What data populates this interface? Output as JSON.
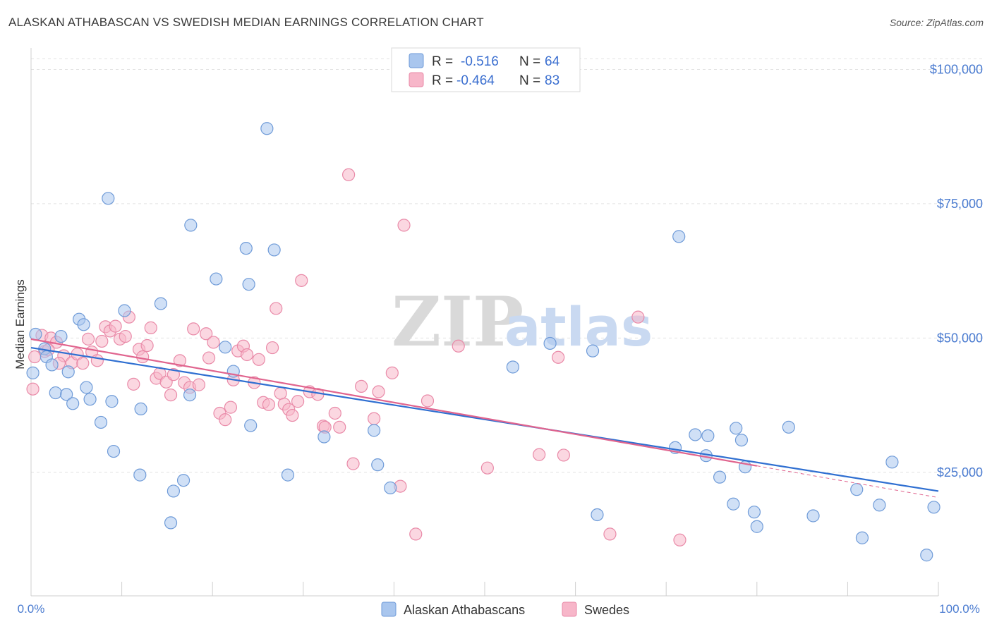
{
  "title": "ALASKAN ATHABASCAN VS SWEDISH MEDIAN EARNINGS CORRELATION CHART",
  "source": "Source: ZipAtlas.com",
  "watermark": {
    "zip": "ZIP",
    "atlas": "atlas"
  },
  "legend": {
    "series": [
      {
        "r_label": "R =",
        "r_value": "-0.516",
        "n_label": "N =",
        "n_value": "64"
      },
      {
        "r_label": "R =",
        "r_value": "-0.464",
        "n_label": "N =",
        "n_value": "83"
      }
    ]
  },
  "colors": {
    "blue_fill": "#a9c6ee",
    "blue_stroke": "#6f9bd8",
    "blue_line": "#2f6fd1",
    "pink_fill": "#f7b6c9",
    "pink_stroke": "#e98aa8",
    "pink_line": "#e0648e"
  },
  "chart_data": {
    "type": "scatter",
    "xlabel": "",
    "ylabel": "Median Earnings",
    "xlim": [
      0,
      100
    ],
    "ylim": [
      2000,
      104000
    ],
    "x_tick_labels": [
      "0.0%",
      "100.0%"
    ],
    "y_ticks": [
      {
        "value": 25000,
        "label": "$25,000"
      },
      {
        "value": 50000,
        "label": "$50,000"
      },
      {
        "value": 75000,
        "label": "$75,000"
      },
      {
        "value": 100000,
        "label": "$100,000"
      }
    ],
    "grid": true,
    "legend_position": "top-center",
    "series": [
      {
        "name": "Alaskan Athabascans",
        "color": "#a9c6ee",
        "trend": {
          "x": [
            0,
            100
          ],
          "y": [
            48200,
            21500
          ]
        },
        "points": [
          {
            "x": 0.2,
            "y": 43500
          },
          {
            "x": 0.5,
            "y": 50700
          },
          {
            "x": 1.5,
            "y": 48000
          },
          {
            "x": 1.7,
            "y": 46500
          },
          {
            "x": 2.3,
            "y": 45000
          },
          {
            "x": 2.7,
            "y": 39800
          },
          {
            "x": 3.3,
            "y": 50300
          },
          {
            "x": 3.9,
            "y": 39500
          },
          {
            "x": 4.1,
            "y": 43700
          },
          {
            "x": 4.6,
            "y": 37800
          },
          {
            "x": 5.3,
            "y": 53500
          },
          {
            "x": 5.8,
            "y": 52500
          },
          {
            "x": 6.1,
            "y": 40800
          },
          {
            "x": 6.5,
            "y": 38600
          },
          {
            "x": 7.7,
            "y": 34300
          },
          {
            "x": 8.5,
            "y": 76000
          },
          {
            "x": 8.9,
            "y": 38200
          },
          {
            "x": 9.1,
            "y": 28900
          },
          {
            "x": 10.3,
            "y": 55100
          },
          {
            "x": 12.0,
            "y": 24500
          },
          {
            "x": 12.1,
            "y": 36800
          },
          {
            "x": 14.3,
            "y": 56400
          },
          {
            "x": 15.4,
            "y": 15600
          },
          {
            "x": 15.7,
            "y": 21500
          },
          {
            "x": 16.8,
            "y": 23500
          },
          {
            "x": 17.5,
            "y": 39400
          },
          {
            "x": 17.6,
            "y": 71000
          },
          {
            "x": 20.4,
            "y": 61000
          },
          {
            "x": 21.4,
            "y": 48300
          },
          {
            "x": 22.3,
            "y": 43800
          },
          {
            "x": 23.7,
            "y": 66700
          },
          {
            "x": 24.0,
            "y": 60000
          },
          {
            "x": 24.2,
            "y": 33700
          },
          {
            "x": 26.0,
            "y": 89000
          },
          {
            "x": 26.8,
            "y": 66400
          },
          {
            "x": 28.3,
            "y": 24500
          },
          {
            "x": 32.3,
            "y": 31600
          },
          {
            "x": 37.8,
            "y": 32800
          },
          {
            "x": 38.2,
            "y": 26400
          },
          {
            "x": 39.6,
            "y": 22100
          },
          {
            "x": 53.1,
            "y": 44600
          },
          {
            "x": 57.2,
            "y": 49000
          },
          {
            "x": 61.9,
            "y": 47600
          },
          {
            "x": 62.4,
            "y": 17100
          },
          {
            "x": 71.0,
            "y": 29600
          },
          {
            "x": 71.4,
            "y": 68900
          },
          {
            "x": 73.2,
            "y": 32000
          },
          {
            "x": 74.4,
            "y": 28100
          },
          {
            "x": 74.6,
            "y": 31800
          },
          {
            "x": 75.9,
            "y": 24100
          },
          {
            "x": 77.4,
            "y": 19100
          },
          {
            "x": 77.7,
            "y": 33200
          },
          {
            "x": 78.3,
            "y": 31000
          },
          {
            "x": 78.7,
            "y": 26000
          },
          {
            "x": 79.7,
            "y": 17600
          },
          {
            "x": 80.0,
            "y": 14900
          },
          {
            "x": 83.5,
            "y": 33400
          },
          {
            "x": 86.2,
            "y": 16900
          },
          {
            "x": 91.0,
            "y": 21800
          },
          {
            "x": 91.6,
            "y": 12800
          },
          {
            "x": 93.5,
            "y": 18900
          },
          {
            "x": 94.9,
            "y": 26900
          },
          {
            "x": 98.7,
            "y": 9600
          },
          {
            "x": 99.5,
            "y": 18500
          }
        ]
      },
      {
        "name": "Swedes",
        "color": "#f7b6c9",
        "trend": {
          "x": [
            0,
            80
          ],
          "y": [
            49800,
            26200
          ]
        },
        "points": [
          {
            "x": 0.2,
            "y": 40500
          },
          {
            "x": 1.2,
            "y": 50500
          },
          {
            "x": 1.5,
            "y": 47500
          },
          {
            "x": 2.2,
            "y": 50000
          },
          {
            "x": 2.8,
            "y": 49200
          },
          {
            "x": 3.6,
            "y": 46700
          },
          {
            "x": 4.5,
            "y": 45400
          },
          {
            "x": 5.1,
            "y": 47000
          },
          {
            "x": 5.7,
            "y": 45300
          },
          {
            "x": 6.3,
            "y": 49800
          },
          {
            "x": 6.7,
            "y": 47400
          },
          {
            "x": 7.3,
            "y": 45800
          },
          {
            "x": 7.8,
            "y": 49400
          },
          {
            "x": 8.2,
            "y": 52100
          },
          {
            "x": 8.7,
            "y": 51300
          },
          {
            "x": 9.3,
            "y": 52200
          },
          {
            "x": 9.8,
            "y": 49800
          },
          {
            "x": 10.4,
            "y": 50300
          },
          {
            "x": 10.8,
            "y": 53900
          },
          {
            "x": 11.3,
            "y": 41400
          },
          {
            "x": 11.9,
            "y": 47900
          },
          {
            "x": 12.3,
            "y": 46500
          },
          {
            "x": 12.8,
            "y": 48600
          },
          {
            "x": 13.2,
            "y": 51900
          },
          {
            "x": 13.8,
            "y": 42500
          },
          {
            "x": 14.2,
            "y": 43400
          },
          {
            "x": 14.9,
            "y": 41800
          },
          {
            "x": 15.4,
            "y": 39400
          },
          {
            "x": 15.7,
            "y": 43200
          },
          {
            "x": 16.4,
            "y": 45800
          },
          {
            "x": 16.9,
            "y": 41700
          },
          {
            "x": 17.5,
            "y": 40800
          },
          {
            "x": 17.9,
            "y": 51700
          },
          {
            "x": 18.5,
            "y": 41300
          },
          {
            "x": 19.3,
            "y": 50800
          },
          {
            "x": 19.6,
            "y": 46300
          },
          {
            "x": 20.1,
            "y": 49200
          },
          {
            "x": 20.8,
            "y": 36000
          },
          {
            "x": 21.4,
            "y": 34800
          },
          {
            "x": 22.0,
            "y": 37100
          },
          {
            "x": 22.3,
            "y": 42200
          },
          {
            "x": 22.8,
            "y": 47600
          },
          {
            "x": 23.4,
            "y": 48500
          },
          {
            "x": 23.8,
            "y": 46900
          },
          {
            "x": 24.6,
            "y": 41700
          },
          {
            "x": 25.1,
            "y": 46000
          },
          {
            "x": 25.6,
            "y": 38000
          },
          {
            "x": 26.2,
            "y": 37600
          },
          {
            "x": 26.6,
            "y": 48200
          },
          {
            "x": 27.0,
            "y": 55500
          },
          {
            "x": 27.5,
            "y": 39700
          },
          {
            "x": 27.9,
            "y": 37700
          },
          {
            "x": 28.4,
            "y": 36700
          },
          {
            "x": 28.8,
            "y": 35600
          },
          {
            "x": 29.4,
            "y": 38200
          },
          {
            "x": 29.8,
            "y": 60700
          },
          {
            "x": 30.7,
            "y": 40000
          },
          {
            "x": 31.6,
            "y": 39500
          },
          {
            "x": 32.2,
            "y": 33600
          },
          {
            "x": 32.4,
            "y": 33400
          },
          {
            "x": 33.5,
            "y": 36000
          },
          {
            "x": 34.0,
            "y": 33400
          },
          {
            "x": 35.0,
            "y": 80400
          },
          {
            "x": 35.5,
            "y": 26600
          },
          {
            "x": 36.4,
            "y": 41000
          },
          {
            "x": 37.8,
            "y": 35000
          },
          {
            "x": 38.3,
            "y": 40000
          },
          {
            "x": 39.8,
            "y": 43500
          },
          {
            "x": 40.7,
            "y": 22400
          },
          {
            "x": 41.1,
            "y": 71000
          },
          {
            "x": 42.4,
            "y": 13500
          },
          {
            "x": 43.7,
            "y": 38300
          },
          {
            "x": 47.1,
            "y": 48500
          },
          {
            "x": 50.3,
            "y": 25800
          },
          {
            "x": 56.0,
            "y": 28300
          },
          {
            "x": 58.1,
            "y": 46400
          },
          {
            "x": 58.7,
            "y": 28200
          },
          {
            "x": 63.8,
            "y": 13500
          },
          {
            "x": 66.9,
            "y": 53900
          },
          {
            "x": 71.5,
            "y": 12400
          },
          {
            "x": 0.4,
            "y": 46500
          },
          {
            "x": 1.9,
            "y": 47800
          },
          {
            "x": 3.1,
            "y": 45300
          }
        ]
      }
    ]
  }
}
